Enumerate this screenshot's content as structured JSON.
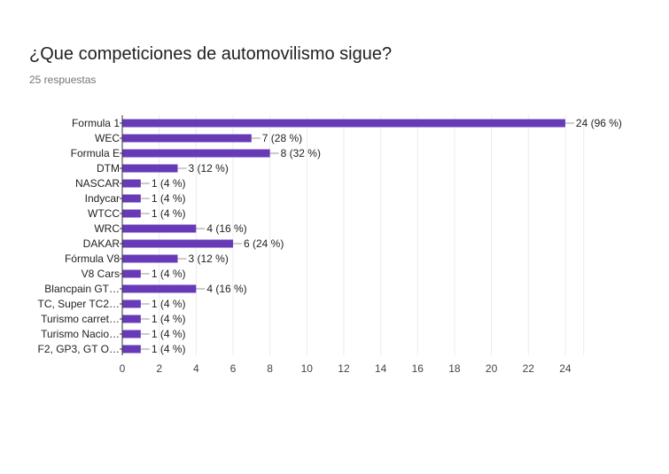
{
  "question": {
    "title": "¿Que competiciones de automovilismo sigue?",
    "responses": "25 respuestas"
  },
  "colors": {
    "bar": "#673ab7",
    "grid": "#ebebeb",
    "axis": "#333333",
    "connector": "#999999"
  },
  "chart_data": {
    "type": "bar",
    "orientation": "horizontal",
    "title": "",
    "xlabel": "",
    "ylabel": "",
    "xlim": [
      0,
      25
    ],
    "x_ticks": [
      0,
      2,
      4,
      6,
      8,
      10,
      12,
      14,
      16,
      18,
      20,
      22,
      24
    ],
    "grid": true,
    "categories": [
      "Formula 1",
      "WEC",
      "Formula E",
      "DTM",
      "NASCAR",
      "Indycar",
      "WTCC",
      "WRC",
      "DAKAR",
      "Fórmula V8",
      "V8 Cars",
      "Blancpain GT…",
      "TC, Super TC2…",
      "Turismo carret…",
      "Turismo Nacio…",
      "F2, GP3, GT O…"
    ],
    "values": [
      24,
      7,
      8,
      3,
      1,
      1,
      1,
      4,
      6,
      3,
      1,
      4,
      1,
      1,
      1,
      1
    ],
    "labels": [
      "24 (96 %)",
      "7 (28 %)",
      "8 (32 %)",
      "3 (12 %)",
      "1 (4 %)",
      "1 (4 %)",
      "1 (4 %)",
      "4 (16 %)",
      "6 (24 %)",
      "3 (12 %)",
      "1 (4 %)",
      "4 (16 %)",
      "1 (4 %)",
      "1 (4 %)",
      "1 (4 %)",
      "1 (4 %)"
    ]
  }
}
